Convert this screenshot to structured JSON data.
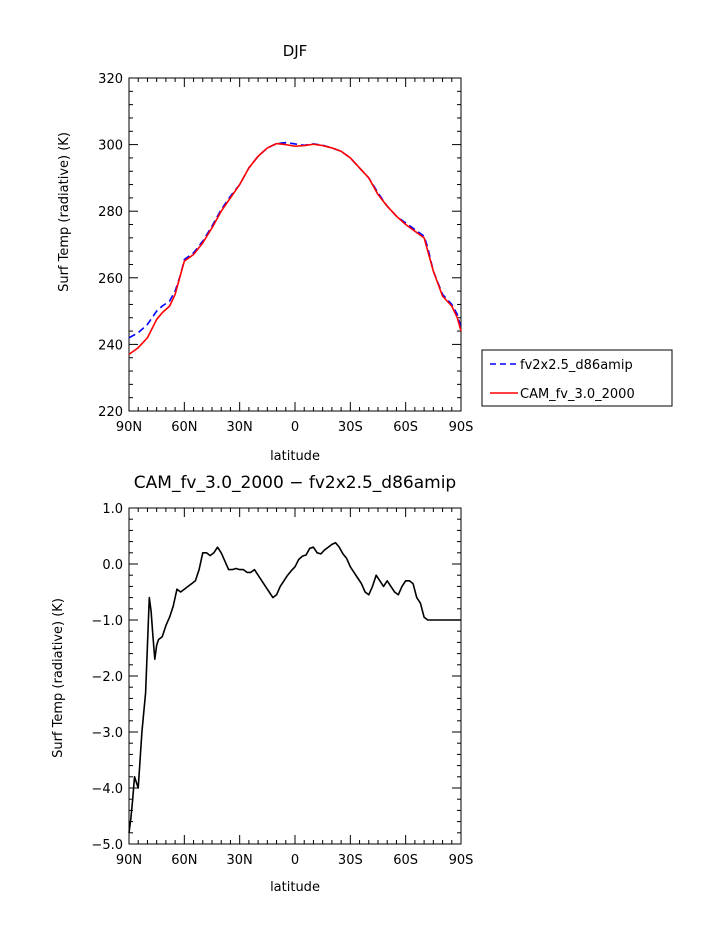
{
  "chart_data": [
    {
      "type": "line",
      "title": "DJF",
      "xlabel": "latitude",
      "ylabel": "Surf Temp (radiative) (K)",
      "xlim": [
        -90,
        90
      ],
      "ylim": [
        220,
        320
      ],
      "x_ticks": [
        -90,
        -60,
        -30,
        0,
        30,
        60,
        90
      ],
      "x_tick_labels": [
        "90N",
        "60N",
        "30N",
        "0",
        "30S",
        "60S",
        "90S"
      ],
      "y_ticks": [
        220,
        240,
        260,
        280,
        300,
        320
      ],
      "y_tick_labels": [
        "220",
        "240",
        "260",
        "280",
        "300",
        "320"
      ],
      "grid": false,
      "legend": "outside-right",
      "x": [
        -90,
        -85,
        -80,
        -75,
        -72,
        -68,
        -65,
        -62,
        -60,
        -55,
        -50,
        -45,
        -40,
        -35,
        -30,
        -25,
        -20,
        -15,
        -10,
        -5,
        0,
        5,
        10,
        15,
        20,
        25,
        30,
        35,
        40,
        45,
        50,
        55,
        60,
        65,
        70,
        72,
        75,
        80,
        85,
        88,
        90
      ],
      "series": [
        {
          "name": "fv2x2.5_d86amip",
          "color": "#0000ff",
          "dash": "dashed",
          "values": [
            242,
            243.5,
            246,
            250,
            251.5,
            253,
            256,
            261,
            265.5,
            267.5,
            271,
            275.5,
            280.5,
            284.5,
            288,
            293,
            296.5,
            299,
            300.3,
            300.6,
            300.2,
            299.8,
            300.2,
            299.8,
            299,
            298,
            296,
            293,
            290,
            285.5,
            281.5,
            278.5,
            276.5,
            274.5,
            272.5,
            269,
            262,
            255,
            252,
            249,
            245
          ]
        },
        {
          "name": "CAM_fv_3.0_2000",
          "color": "#ff0000",
          "dash": "solid",
          "values": [
            237,
            239,
            242,
            247.5,
            249.5,
            251.5,
            255,
            261,
            265,
            267,
            270.5,
            275,
            280,
            284,
            288,
            293,
            296.5,
            299,
            300.3,
            300,
            299.5,
            299.7,
            300.1,
            299.7,
            299,
            298,
            296,
            293,
            290,
            285,
            281.5,
            278.5,
            276,
            274,
            272,
            268,
            262,
            254.5,
            251.5,
            248,
            244
          ]
        }
      ]
    },
    {
      "type": "line",
      "title": "CAM_fv_3.0_2000 − fv2x2.5_d86amip",
      "xlabel": "latitude",
      "ylabel": "Surf Temp (radiative) (K)",
      "xlim": [
        -90,
        90
      ],
      "ylim": [
        -5,
        1
      ],
      "x_ticks": [
        -90,
        -60,
        -30,
        0,
        30,
        60,
        90
      ],
      "x_tick_labels": [
        "90N",
        "60N",
        "30N",
        "0",
        "30S",
        "60S",
        "90S"
      ],
      "y_ticks": [
        -5,
        -4,
        -3,
        -2,
        -1,
        0,
        1
      ],
      "y_tick_labels": [
        "−5.0",
        "−4.0",
        "−3.0",
        "−2.0",
        "−1.0",
        "0.0",
        "1.0"
      ],
      "grid": false,
      "x": [
        -90,
        -89,
        -88,
        -87,
        -86,
        -85,
        -84,
        -83,
        -81,
        -79,
        -78,
        -77,
        -76,
        -75,
        -74,
        -72,
        -70,
        -68,
        -66,
        -64,
        -62,
        -60,
        -58,
        -56,
        -54,
        -52,
        -50,
        -48,
        -46,
        -44,
        -42,
        -40,
        -38,
        -36,
        -34,
        -32,
        -30,
        -28,
        -26,
        -24,
        -22,
        -20,
        -18,
        -16,
        -14,
        -12,
        -10,
        -8,
        -6,
        -4,
        -2,
        0,
        2,
        4,
        6,
        8,
        10,
        12,
        14,
        16,
        18,
        20,
        22,
        24,
        26,
        28,
        30,
        32,
        34,
        36,
        38,
        40,
        42,
        44,
        46,
        48,
        50,
        52,
        54,
        56,
        58,
        60,
        62,
        64,
        66,
        68,
        70,
        72,
        74,
        76,
        78,
        80,
        82,
        84,
        86,
        88,
        90
      ],
      "series": [
        {
          "name": "",
          "color": "#000000",
          "values": [
            -4.8,
            -4.55,
            -4.2,
            -3.8,
            -3.9,
            -4.0,
            -3.5,
            -3.0,
            -2.3,
            -0.6,
            -0.85,
            -1.3,
            -1.7,
            -1.45,
            -1.35,
            -1.3,
            -1.1,
            -0.95,
            -0.75,
            -0.45,
            -0.5,
            -0.45,
            -0.4,
            -0.35,
            -0.3,
            -0.1,
            0.2,
            0.2,
            0.15,
            0.2,
            0.3,
            0.2,
            0.05,
            -0.1,
            -0.1,
            -0.08,
            -0.1,
            -0.1,
            -0.15,
            -0.15,
            -0.1,
            -0.2,
            -0.3,
            -0.4,
            -0.5,
            -0.6,
            -0.55,
            -0.4,
            -0.3,
            -0.2,
            -0.12,
            -0.05,
            0.08,
            0.14,
            0.16,
            0.28,
            0.3,
            0.2,
            0.18,
            0.25,
            0.3,
            0.35,
            0.38,
            0.3,
            0.18,
            0.1,
            -0.05,
            -0.15,
            -0.25,
            -0.35,
            -0.5,
            -0.55,
            -0.4,
            -0.2,
            -0.3,
            -0.4,
            -0.3,
            -0.4,
            -0.5,
            -0.55,
            -0.4,
            -0.3,
            -0.3,
            -0.35,
            -0.6,
            -0.7,
            -0.95,
            -1.0,
            -1.0,
            -1.0,
            -1.0,
            -1.0,
            -1.0,
            -1.0,
            -1.0,
            -1.0,
            -1.0
          ]
        }
      ]
    }
  ]
}
